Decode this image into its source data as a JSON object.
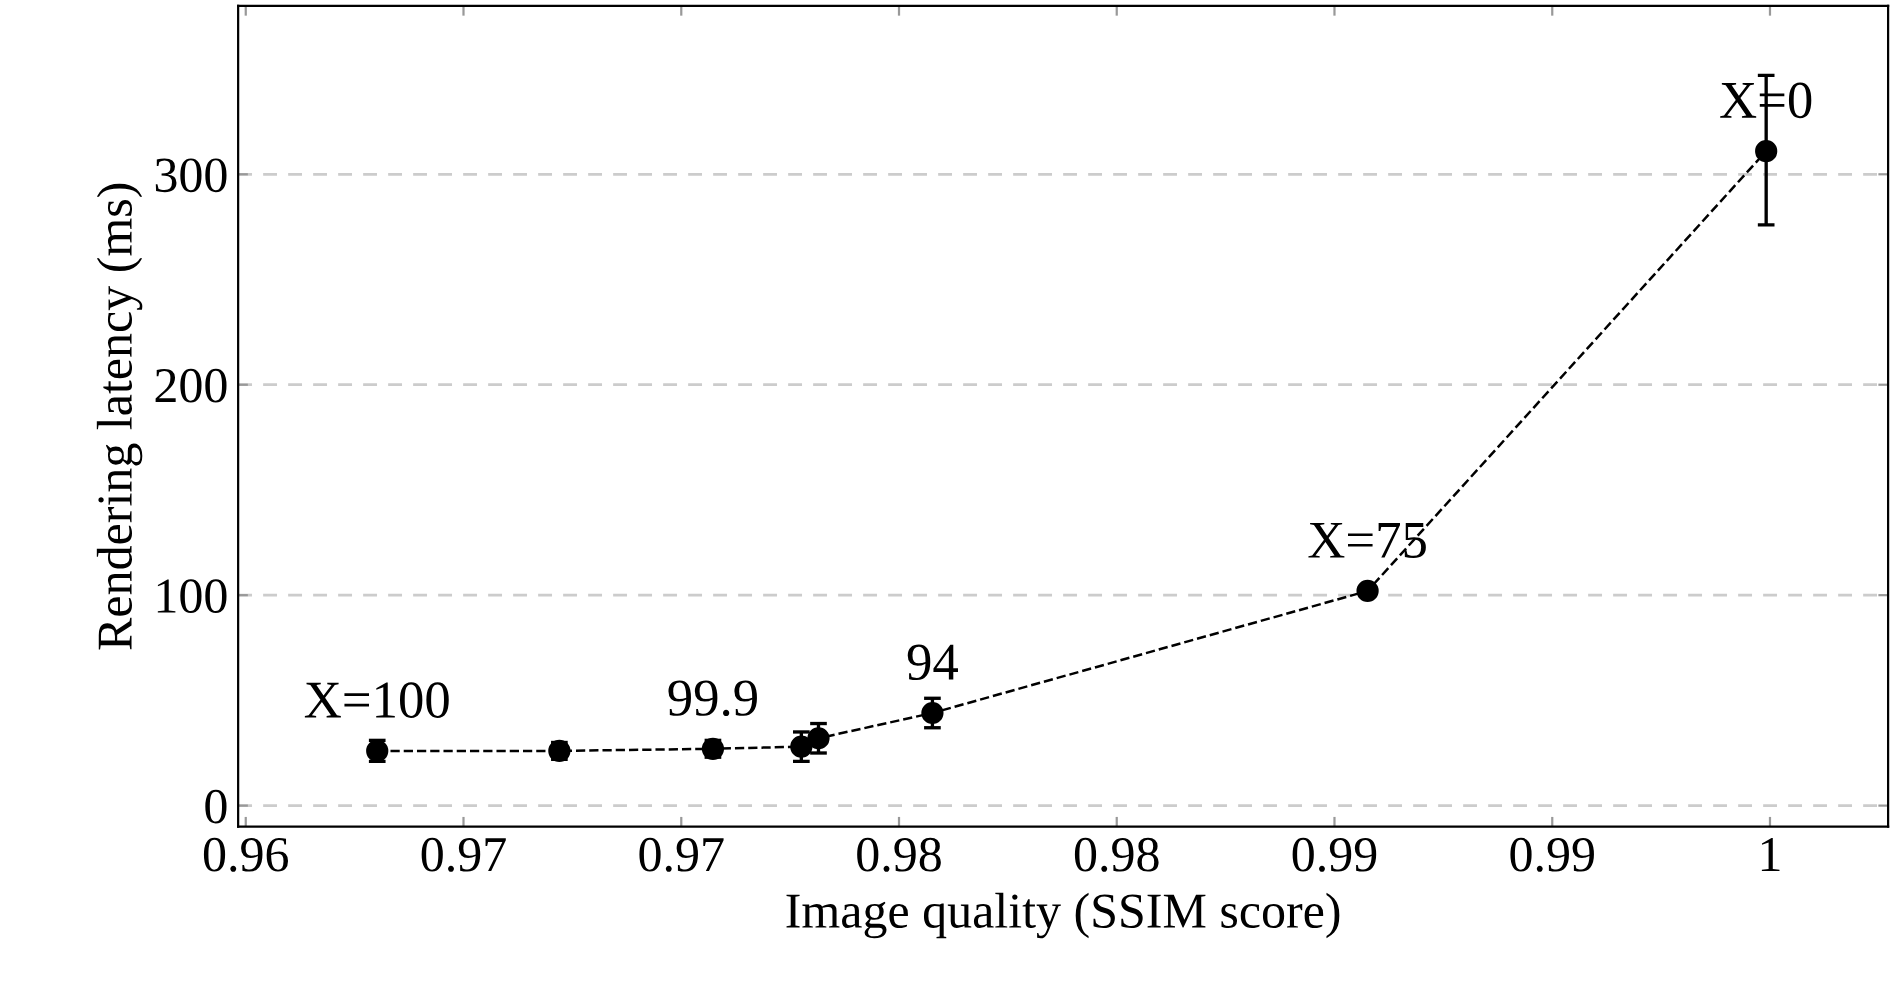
{
  "chart_data": {
    "type": "line",
    "xlabel": "Image quality (SSIM score)",
    "ylabel": "Rendering latency (ms)",
    "xlim": [
      0.9598,
      1.0031
    ],
    "ylim": [
      -10,
      380
    ],
    "xticks": [
      {
        "value": 0.96,
        "label": "0.96"
      },
      {
        "value": 0.965714,
        "label": "0.97"
      },
      {
        "value": 0.971429,
        "label": "0.97"
      },
      {
        "value": 0.977143,
        "label": "0.98"
      },
      {
        "value": 0.982857,
        "label": "0.98"
      },
      {
        "value": 0.988571,
        "label": "0.99"
      },
      {
        "value": 0.994286,
        "label": "0.99"
      },
      {
        "value": 1.0,
        "label": "1"
      }
    ],
    "yticks": [
      0,
      100,
      200,
      300
    ],
    "grid": "y",
    "marker": "circle",
    "line_style": "dashed",
    "x": [
      0.96345,
      0.96823,
      0.97226,
      0.97458,
      0.97503,
      0.97802,
      0.98944,
      0.9999
    ],
    "series": [
      {
        "color": "#000000",
        "values": [
          26,
          26,
          27,
          28,
          32,
          44,
          102,
          311
        ],
        "errors": [
          5,
          4,
          4,
          7,
          7,
          7,
          2,
          [
            276,
            347
          ]
        ]
      }
    ],
    "annotations": [
      {
        "text": "X=100",
        "x": 0.96345,
        "y": 26
      },
      {
        "text": "99.9",
        "x": 0.97226,
        "y": 27
      },
      {
        "text": "94",
        "x": 0.97802,
        "y": 44
      },
      {
        "text": "X=75",
        "x": 0.98944,
        "y": 102
      },
      {
        "text": "X=0",
        "x": 0.9999,
        "y": 311
      }
    ]
  }
}
